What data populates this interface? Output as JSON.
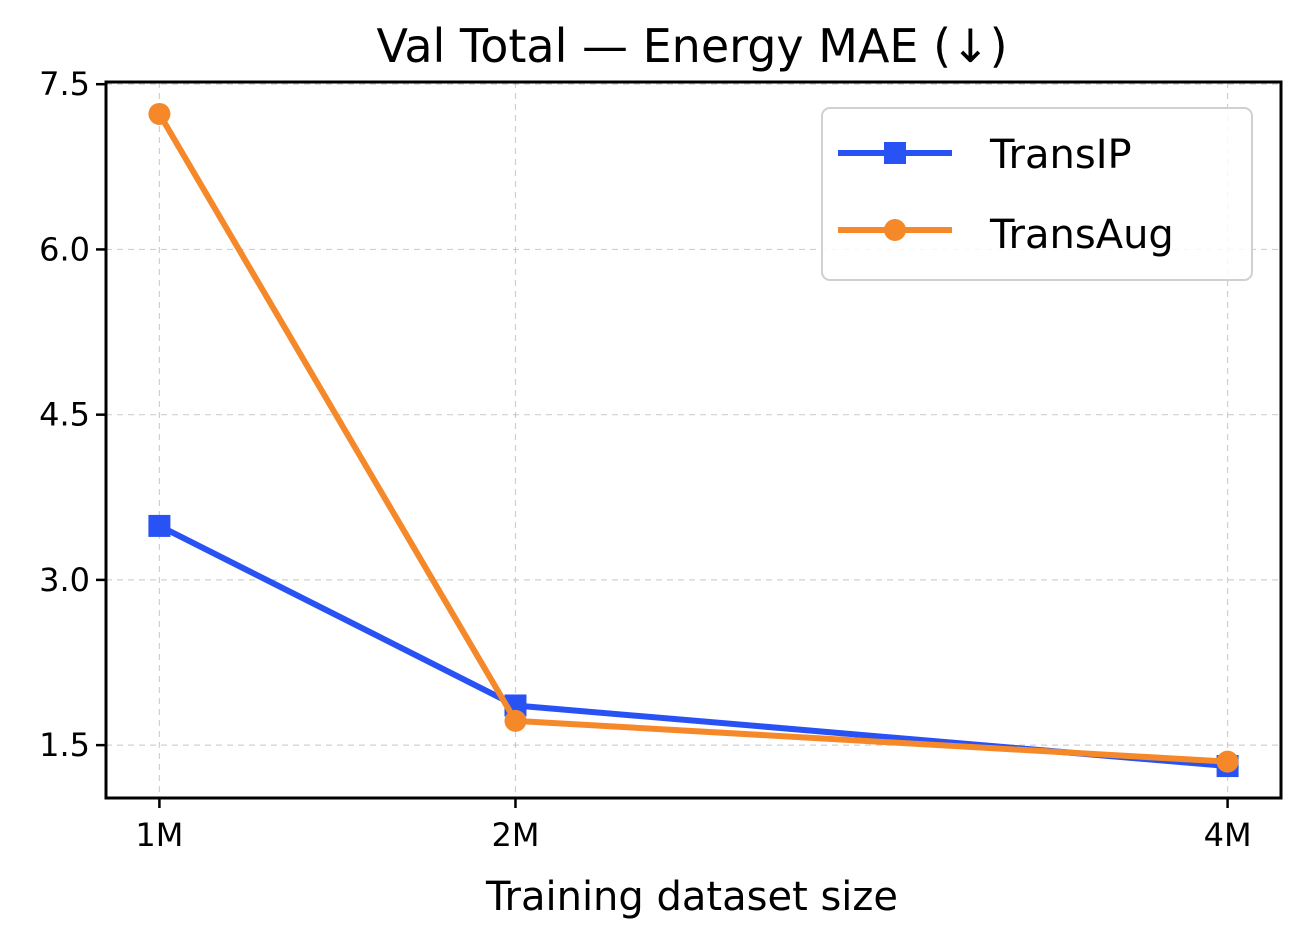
{
  "chart_data": {
    "type": "line",
    "title": "Val Total — Energy MAE (↓)",
    "xlabel": "Training dataset size",
    "ylabel": "",
    "x": [
      1,
      2,
      4
    ],
    "categories": [
      "1M",
      "2M",
      "4M"
    ],
    "xlim": [
      0.85,
      4.15
    ],
    "ylim": [
      1.02,
      7.52
    ],
    "yticks": [
      1.5,
      3.0,
      4.5,
      6.0,
      7.5
    ],
    "ytick_labels": [
      "1.5",
      "3.0",
      "4.5",
      "6.0",
      "7.5"
    ],
    "grid": true,
    "legend_position": "top-right",
    "series": [
      {
        "name": "TransIP",
        "marker": "square",
        "color": "#2952f5",
        "values": [
          3.49,
          1.86,
          1.31
        ]
      },
      {
        "name": "TransAug",
        "marker": "circle",
        "color": "#f5892a",
        "values": [
          7.23,
          1.72,
          1.35
        ]
      }
    ]
  }
}
